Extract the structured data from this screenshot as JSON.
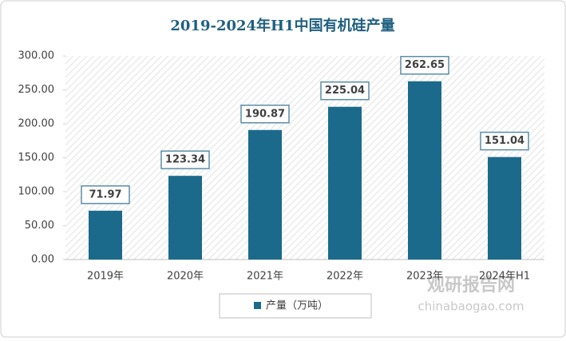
{
  "chart_data": {
    "type": "bar",
    "title": "2019-2024年H1中国有机硅产量",
    "categories": [
      "2019年",
      "2020年",
      "2021年",
      "2022年",
      "2023年",
      "2024年H1"
    ],
    "series": [
      {
        "name": "产量（万吨）",
        "color": "#1b6a8c",
        "values": [
          71.97,
          123.34,
          190.87,
          225.04,
          262.65,
          151.04
        ]
      }
    ],
    "ylim": [
      0,
      300
    ],
    "yticks": [
      {
        "value": 0,
        "label": "0.00"
      },
      {
        "value": 50,
        "label": "50.00"
      },
      {
        "value": 100,
        "label": "100.00"
      },
      {
        "value": 150,
        "label": "150.00"
      },
      {
        "value": 200,
        "label": "200.00"
      },
      {
        "value": 250,
        "label": "250.00"
      },
      {
        "value": 300,
        "label": "300.00"
      }
    ],
    "watermark": {
      "name": "观研报告网",
      "url": "chinabaogao.com"
    }
  }
}
